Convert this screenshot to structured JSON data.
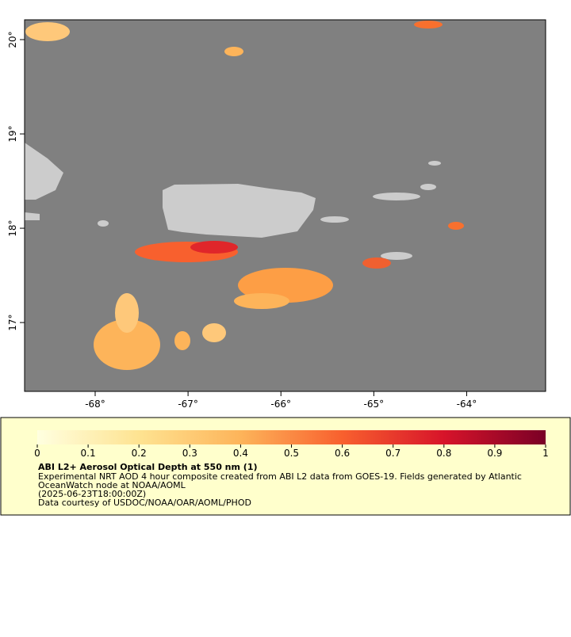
{
  "map": {
    "xlim": [
      -68.76,
      -63.15
    ],
    "ylim": [
      16.27,
      20.21
    ],
    "xticks": [
      {
        "value": -68,
        "label": "-68°"
      },
      {
        "value": -67,
        "label": "-67°"
      },
      {
        "value": -66,
        "label": "-66°"
      },
      {
        "value": -65,
        "label": "-65°"
      },
      {
        "value": -64,
        "label": "-64°"
      }
    ],
    "yticks": [
      {
        "value": 17,
        "label": "17°"
      },
      {
        "value": 18,
        "label": "18°"
      },
      {
        "value": 19,
        "label": "19°"
      },
      {
        "value": 20,
        "label": "20°"
      }
    ]
  },
  "colorbar": {
    "range": [
      0,
      1
    ],
    "ticks": [
      0,
      0.1,
      0.2,
      0.3,
      0.4,
      0.5,
      0.6,
      0.7,
      0.8,
      0.9,
      1
    ]
  },
  "legend": {
    "title": "ABI L2+ Aerosol Optical Depth at 550 nm (1)",
    "lines": [
      "Experimental NRT AOD 4 hour composite created from ABI L2 data from GOES-19. Fields generated by Atlantic",
      "OceanWatch node at NOAA/AOML",
      "(2025-06-23T18:00:00Z)",
      "Data courtesy of USDOC/NOAA/OAR/AOML/PHOD"
    ]
  }
}
